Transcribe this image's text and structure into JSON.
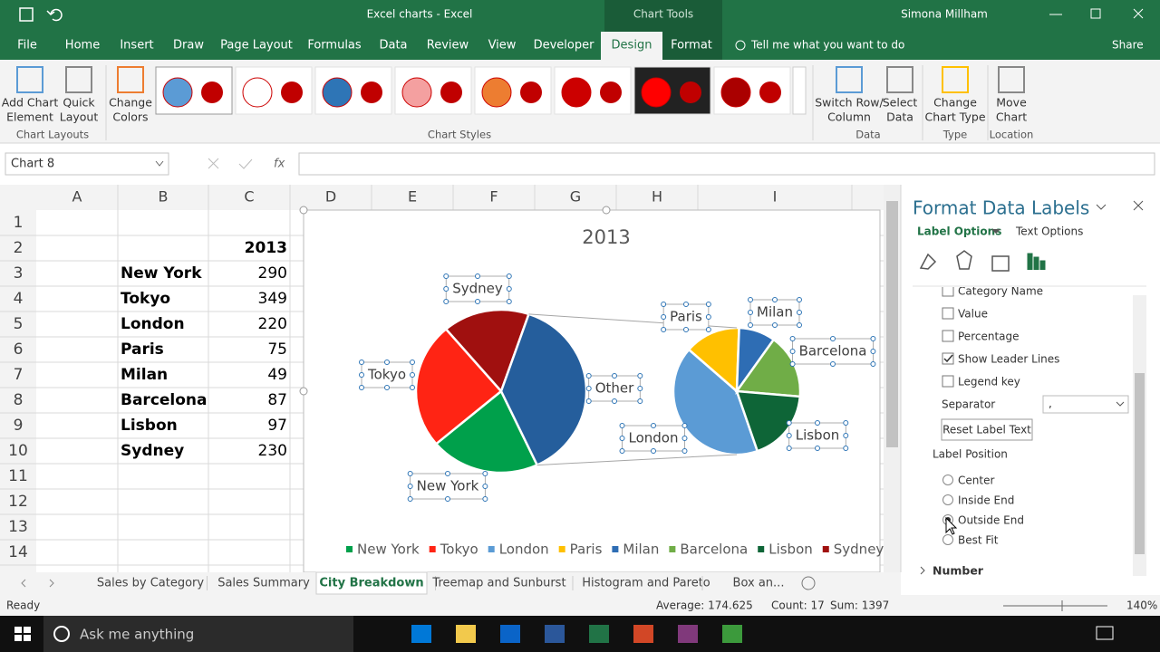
{
  "title_bar": {
    "title": "Excel charts - Excel",
    "context_tab": "Chart Tools",
    "user": "Simona Millham"
  },
  "ribbon": {
    "tabs": [
      "File",
      "Home",
      "Insert",
      "Draw",
      "Page Layout",
      "Formulas",
      "Data",
      "Review",
      "View",
      "Developer",
      "Design",
      "Format"
    ],
    "active_tab": "Design",
    "tell_me": "Tell me what you want to do",
    "share": "Share",
    "buttons": [
      [
        "Add Chart",
        "Element"
      ],
      [
        "Quick",
        "Layout"
      ],
      [
        "Change",
        "Colors"
      ],
      [
        "Switch Row/",
        "Column"
      ],
      [
        "Select",
        "Data"
      ],
      [
        "Change",
        "Chart Type"
      ],
      [
        "Move",
        "Chart"
      ]
    ],
    "groups": [
      "Chart Layouts",
      "Chart Styles",
      "Data",
      "Type",
      "Location"
    ]
  },
  "formula_bar": {
    "name_box": "Chart 8"
  },
  "sheet": {
    "columns": [
      "A",
      "B",
      "C",
      "D",
      "E",
      "F",
      "G",
      "H",
      "I"
    ],
    "rows": [
      1,
      2,
      3,
      4,
      5,
      6,
      7,
      8,
      9,
      10,
      11,
      12,
      13,
      14
    ]
  },
  "chart_data": {
    "type": "pie-of-pie",
    "title": "2013",
    "categories": [
      "New York",
      "Tokyo",
      "London",
      "Paris",
      "Milan",
      "Barcelona",
      "Lisbon",
      "Sydney"
    ],
    "values": [
      290,
      349,
      220,
      75,
      49,
      87,
      97,
      230
    ],
    "colors": [
      "#00a04b",
      "#ff2414",
      "#5b9bd5",
      "#ffc000",
      "#2e6db4",
      "#70ad47",
      "#0e6537",
      "#a0100f"
    ],
    "second_plot": [
      2,
      3,
      4,
      5,
      6
    ],
    "other_label": "Other",
    "other_color": "#255e9c",
    "legend": "bottom"
  },
  "format_pane": {
    "title": "Format Data Labels",
    "tabs": [
      "Label Options",
      "Text Options"
    ],
    "options": [
      {
        "label": "Category Name",
        "checked": false
      },
      {
        "label": "Value",
        "checked": false
      },
      {
        "label": "Percentage",
        "checked": false
      },
      {
        "label": "Show Leader Lines",
        "checked": true
      },
      {
        "label": "Legend key",
        "checked": false
      }
    ],
    "separator_label": "Separator",
    "separator": ",",
    "reset_button": "Reset Label Text",
    "position_label": "Label Position",
    "positions": [
      "Center",
      "Inside End",
      "Outside End",
      "Best Fit"
    ],
    "selected_position": "Outside End",
    "section": "Number"
  },
  "sheet_tabs": {
    "tabs": [
      "Sales by Category",
      "Sales Summary",
      "City Breakdown",
      "Treemap and Sunburst",
      "Histogram and Pareto",
      "Box an..."
    ],
    "active": "City Breakdown"
  },
  "status_bar": {
    "mode": "Ready",
    "average": "Average: 174.625",
    "count": "Count: 17",
    "sum": "Sum: 1397",
    "zoom": "140%"
  },
  "taskbar": {
    "search": "Ask me anything"
  }
}
